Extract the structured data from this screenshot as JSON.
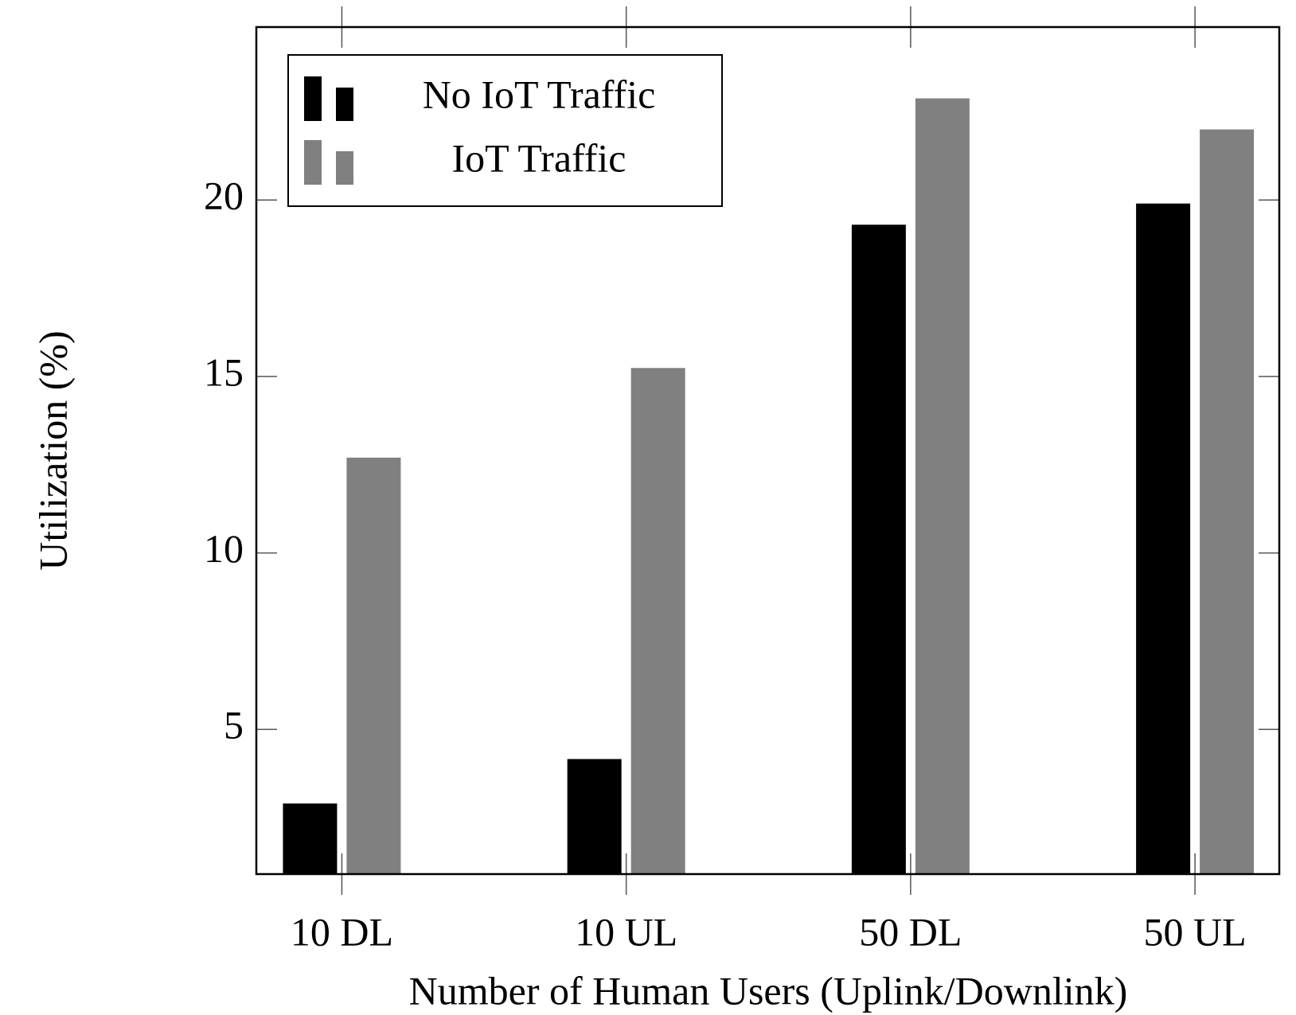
{
  "chart_data": {
    "type": "bar",
    "x_label": "Number of Human Users (Uplink/Downlink)",
    "y_label": "Utilization (%)",
    "categories": [
      "10 DL",
      "10 UL",
      "50 DL",
      "50 UL"
    ],
    "series": [
      {
        "name": "No IoT Traffic",
        "color": "#000000",
        "values": [
          2.9,
          4.16,
          19.3,
          19.9
        ]
      },
      {
        "name": "IoT Traffic",
        "color": "#808080",
        "values": [
          12.7,
          15.24,
          22.88,
          22.0
        ]
      }
    ],
    "ylim": [
      0.9,
      24.9
    ],
    "yticks": [
      5,
      10,
      15,
      20
    ],
    "legend": "upper left"
  }
}
